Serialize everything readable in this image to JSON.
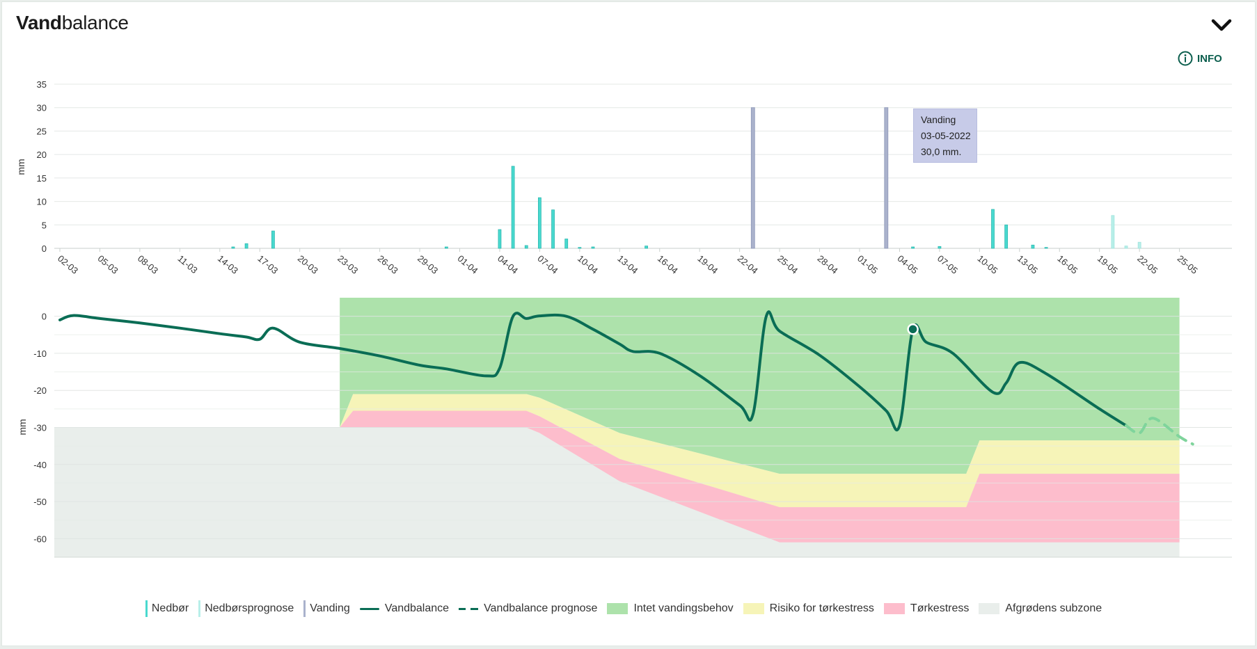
{
  "header": {
    "title_bold": "Vand",
    "title_rest": "balance",
    "info_label": "INFO"
  },
  "colors": {
    "nedbor": "#49d9cf",
    "nedbor_prognose": "#b8efe9",
    "vanding": "#aab2cc",
    "vandbalance": "#0a6d55",
    "vandbalance_prognose": "#7fd49c",
    "intet": "#ade2ab",
    "risiko": "#f6f4b8",
    "torkestress": "#fdbdcc",
    "subzone": "#e9eeeb"
  },
  "tooltip": {
    "line1": "Vanding",
    "line2": "03-05-2022",
    "line3": "30,0 mm."
  },
  "legend": [
    {
      "key": "nedbor",
      "label": "Nedbør",
      "kind": "bar"
    },
    {
      "key": "nedbor_prognose",
      "label": "Nedbørsprognose",
      "kind": "bar"
    },
    {
      "key": "vanding",
      "label": "Vanding",
      "kind": "bar"
    },
    {
      "key": "vandbalance",
      "label": "Vandbalance",
      "kind": "line"
    },
    {
      "key": "vandbalance_prognose",
      "label": "Vandbalance prognose",
      "kind": "dash"
    },
    {
      "key": "intet",
      "label": "Intet vandingsbehov",
      "kind": "area"
    },
    {
      "key": "risiko",
      "label": "Risiko for tørkestress",
      "kind": "area"
    },
    {
      "key": "torkestress",
      "label": "Tørkestress",
      "kind": "area"
    },
    {
      "key": "subzone",
      "label": "Afgrødens subzone",
      "kind": "area"
    }
  ],
  "chart_data": [
    {
      "type": "bar",
      "ylabel": "mm",
      "ylim": [
        0,
        35
      ],
      "yticks": [
        0,
        5,
        10,
        15,
        20,
        25,
        30,
        35
      ],
      "x_start": "2022-03-02",
      "x_end": "2022-05-26",
      "xtick_labels": [
        "02-03",
        "05-03",
        "08-03",
        "11-03",
        "14-03",
        "17-03",
        "20-03",
        "23-03",
        "26-03",
        "29-03",
        "01-04",
        "04-04",
        "07-04",
        "10-04",
        "13-04",
        "16-04",
        "19-04",
        "22-04",
        "25-04",
        "28-04",
        "01-05",
        "04-05",
        "07-05",
        "10-05",
        "13-05",
        "16-05",
        "19-05",
        "22-05",
        "25-05"
      ],
      "grid": true,
      "series": [
        {
          "name": "Nedbør",
          "points": [
            [
              "2022-03-15",
              0.3
            ],
            [
              "2022-03-16",
              1.0
            ],
            [
              "2022-03-18",
              3.7
            ],
            [
              "2022-03-31",
              0.3
            ],
            [
              "2022-04-04",
              4.0
            ],
            [
              "2022-04-05",
              17.5
            ],
            [
              "2022-04-06",
              0.6
            ],
            [
              "2022-04-07",
              10.8
            ],
            [
              "2022-04-08",
              8.2
            ],
            [
              "2022-04-09",
              2.0
            ],
            [
              "2022-04-10",
              0.2
            ],
            [
              "2022-04-11",
              0.3
            ],
            [
              "2022-04-15",
              0.5
            ],
            [
              "2022-05-05",
              0.3
            ],
            [
              "2022-05-07",
              0.4
            ],
            [
              "2022-05-11",
              8.3
            ],
            [
              "2022-05-12",
              5.0
            ],
            [
              "2022-05-14",
              0.7
            ],
            [
              "2022-05-15",
              0.2
            ]
          ]
        },
        {
          "name": "Nedbørsprognose",
          "points": [
            [
              "2022-05-20",
              7.0
            ],
            [
              "2022-05-21",
              0.5
            ],
            [
              "2022-05-22",
              1.3
            ]
          ]
        },
        {
          "name": "Vanding",
          "points": [
            [
              "2022-04-23",
              30.0
            ],
            [
              "2022-05-03",
              30.0
            ]
          ]
        }
      ]
    },
    {
      "type": "area",
      "ylabel": "mm",
      "ylim": [
        -65,
        5
      ],
      "yticks": [
        0,
        -10,
        -20,
        -30,
        -40,
        -50,
        -60
      ],
      "grid": true,
      "zones": {
        "dates": [
          "2022-03-02",
          "2022-03-23",
          "2022-03-24",
          "2022-04-05",
          "2022-04-06",
          "2022-04-07",
          "2022-04-13",
          "2022-04-25",
          "2022-04-26",
          "2022-05-09",
          "2022-05-10",
          "2022-05-25"
        ],
        "subzone_top": [
          -30,
          -30,
          -30,
          -30,
          -30,
          -30,
          -30,
          -30,
          -30,
          -30,
          -30,
          -30
        ],
        "torkestress_top": [
          -30,
          -30,
          -25.5,
          -25.5,
          -25.5,
          -27,
          -38.5,
          -51.5,
          -51.5,
          -51.5,
          -42.5,
          -42.5
        ],
        "risiko_top": [
          -30,
          -30,
          -21,
          -21,
          -21,
          -22,
          -31.5,
          -42.5,
          -42.5,
          -42.5,
          -33.5,
          -33.5
        ],
        "intet_top": [
          5,
          5,
          5,
          5,
          5,
          5,
          5,
          5,
          5,
          5,
          5,
          5
        ],
        "bottom_torkestress": [
          -30,
          -30,
          -30,
          -30,
          -30,
          -31.5,
          -44.5,
          -61,
          -61,
          -61,
          -61,
          -61
        ]
      },
      "series": [
        {
          "name": "Vandbalance",
          "points": [
            [
              "2022-03-02",
              -1
            ],
            [
              "2022-03-03",
              0.2
            ],
            [
              "2022-03-05",
              -0.6
            ],
            [
              "2022-03-08",
              -1.8
            ],
            [
              "2022-03-11",
              -3.2
            ],
            [
              "2022-03-14",
              -4.7
            ],
            [
              "2022-03-16",
              -5.6
            ],
            [
              "2022-03-17",
              -6.2
            ],
            [
              "2022-03-18",
              -3.2
            ],
            [
              "2022-03-20",
              -7.0
            ],
            [
              "2022-03-23",
              -8.7
            ],
            [
              "2022-03-26",
              -10.7
            ],
            [
              "2022-03-29",
              -13.2
            ],
            [
              "2022-03-31",
              -14.2
            ],
            [
              "2022-04-03",
              -16.1
            ],
            [
              "2022-04-04",
              -14
            ],
            [
              "2022-04-05",
              0
            ],
            [
              "2022-04-06",
              -0.6
            ],
            [
              "2022-04-07",
              0.1
            ],
            [
              "2022-04-09",
              0
            ],
            [
              "2022-04-11",
              -3.5
            ],
            [
              "2022-04-13",
              -7.5
            ],
            [
              "2022-04-14",
              -9.5
            ],
            [
              "2022-04-16",
              -10.0
            ],
            [
              "2022-04-19",
              -16
            ],
            [
              "2022-04-22",
              -24
            ],
            [
              "2022-04-23",
              -26.5
            ],
            [
              "2022-04-24",
              0
            ],
            [
              "2022-04-25",
              -4
            ],
            [
              "2022-04-28",
              -10.5
            ],
            [
              "2022-05-01",
              -19
            ],
            [
              "2022-05-03",
              -25.5
            ],
            [
              "2022-05-04",
              -29.5
            ],
            [
              "2022-05-05",
              -3.5
            ],
            [
              "2022-05-06",
              -7
            ],
            [
              "2022-05-08",
              -10
            ],
            [
              "2022-05-11",
              -20.5
            ],
            [
              "2022-05-12",
              -18
            ],
            [
              "2022-05-13",
              -12.5
            ],
            [
              "2022-05-15",
              -15.5
            ],
            [
              "2022-05-19",
              -25
            ],
            [
              "2022-05-21",
              -29.5
            ]
          ]
        },
        {
          "name": "Vandbalance prognose",
          "points": [
            [
              "2022-05-21",
              -29.5
            ],
            [
              "2022-05-22",
              -31.5
            ],
            [
              "2022-05-23",
              -27.5
            ],
            [
              "2022-05-25",
              -32.5
            ],
            [
              "2022-05-26",
              -34.5
            ]
          ]
        }
      ]
    }
  ]
}
